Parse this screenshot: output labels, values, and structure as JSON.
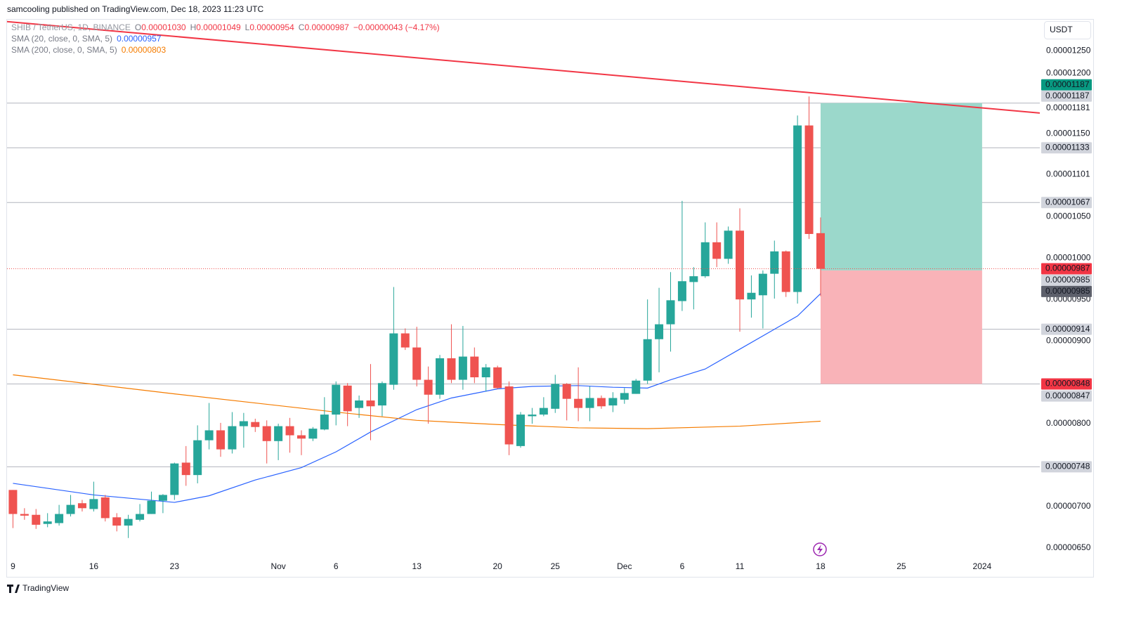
{
  "header": {
    "attribution": "samcooling published on TradingView.com, Dec 18, 2023 11:23 UTC",
    "symbol": "SHIB / TetherUS, 1D, BINANCE",
    "ohlc": [
      {
        "key": "O",
        "value": "0.00001030"
      },
      {
        "key": "H",
        "value": "0.00001049"
      },
      {
        "key": "L",
        "value": "0.00000954"
      },
      {
        "key": "C",
        "value": "0.00000987"
      }
    ],
    "change": "−0.00000043 (−4.17%)",
    "currency": "USDT"
  },
  "footer": {
    "brand": "TradingView"
  },
  "chart_data": {
    "type": "candlestick",
    "up_color": "#26a69a",
    "down_color": "#ef5350",
    "x": [
      "2023-10-09",
      "2023-10-10",
      "2023-10-11",
      "2023-10-12",
      "2023-10-13",
      "2023-10-14",
      "2023-10-15",
      "2023-10-16",
      "2023-10-17",
      "2023-10-18",
      "2023-10-19",
      "2023-10-20",
      "2023-10-21",
      "2023-10-22",
      "2023-10-23",
      "2023-10-24",
      "2023-10-25",
      "2023-10-26",
      "2023-10-27",
      "2023-10-28",
      "2023-10-29",
      "2023-10-30",
      "2023-10-31",
      "2023-11-01",
      "2023-11-02",
      "2023-11-03",
      "2023-11-04",
      "2023-11-05",
      "2023-11-06",
      "2023-11-07",
      "2023-11-08",
      "2023-11-09",
      "2023-11-10",
      "2023-11-11",
      "2023-11-12",
      "2023-11-13",
      "2023-11-14",
      "2023-11-15",
      "2023-11-16",
      "2023-11-17",
      "2023-11-18",
      "2023-11-19",
      "2023-11-20",
      "2023-11-21",
      "2023-11-22",
      "2023-11-23",
      "2023-11-24",
      "2023-11-25",
      "2023-11-26",
      "2023-11-27",
      "2023-11-28",
      "2023-11-29",
      "2023-11-30",
      "2023-12-01",
      "2023-12-02",
      "2023-12-03",
      "2023-12-04",
      "2023-12-05",
      "2023-12-06",
      "2023-12-07",
      "2023-12-08",
      "2023-12-09",
      "2023-12-10",
      "2023-12-11",
      "2023-12-12",
      "2023-12-13",
      "2023-12-14",
      "2023-12-15",
      "2023-12-16",
      "2023-12-17",
      "2023-12-18"
    ],
    "open": [
      7.2e-06,
      6.91e-06,
      6.9e-06,
      6.79e-06,
      6.8e-06,
      6.91e-06,
      7.04e-06,
      6.97e-06,
      7.11e-06,
      6.87e-06,
      6.77e-06,
      6.84e-06,
      6.91e-06,
      7.07e-06,
      7.14e-06,
      7.53e-06,
      7.38e-06,
      7.8e-06,
      7.92e-06,
      7.69e-06,
      7.97e-06,
      8.02e-06,
      7.97e-06,
      7.79e-06,
      7.97e-06,
      7.86e-06,
      7.82e-06,
      7.93e-06,
      8.11e-06,
      8.46e-06,
      8.19e-06,
      8.28e-06,
      8.22e-06,
      8.47e-06,
      9.09e-06,
      8.92e-06,
      8.53e-06,
      8.35e-06,
      8.79e-06,
      8.53e-06,
      8.81e-06,
      8.56e-06,
      8.68e-06,
      8.45e-06,
      7.73e-06,
      8.09e-06,
      8.11e-06,
      8.18e-06,
      8.48e-06,
      8.3e-06,
      8.19e-06,
      8.31e-06,
      8.22e-06,
      8.29e-06,
      8.36e-06,
      8.52e-06,
      9.02e-06,
      9.2e-06,
      9.48e-06,
      9.71e-06,
      9.78e-06,
      1.019e-05,
      9.99e-06,
      1.033e-05,
      9.5e-06,
      9.55e-06,
      9.81e-06,
      1.008e-05,
      9.59e-06,
      1.16e-05,
      1.03e-05
    ],
    "high": [
      7.2e-06,
      6.98e-06,
      6.97e-06,
      6.92e-06,
      7.02e-06,
      7.14e-06,
      7.08e-06,
      7.3e-06,
      7.14e-06,
      6.92e-06,
      6.9e-06,
      7.03e-06,
      7.18e-06,
      7.15e-06,
      7.53e-06,
      7.73e-06,
      7.98e-06,
      8.25e-06,
      8.01e-06,
      8.14e-06,
      8.13e-06,
      8.06e-06,
      8.04e-06,
      8e-06,
      8.07e-06,
      7.92e-06,
      7.96e-06,
      8.32e-06,
      8.51e-06,
      8.49e-06,
      8.34e-06,
      8.72e-06,
      8.51e-06,
      9.65e-06,
      9.15e-06,
      9.17e-06,
      8.69e-06,
      8.83e-06,
      9.2e-06,
      9.18e-06,
      8.92e-06,
      8.72e-06,
      8.7e-06,
      8.51e-06,
      8.14e-06,
      8.19e-06,
      8.32e-06,
      8.59e-06,
      8.49e-06,
      8.68e-06,
      8.45e-06,
      8.34e-06,
      8.38e-06,
      8.43e-06,
      8.54e-06,
      9.5e-06,
      9.64e-06,
      9.83e-06,
      1.069e-05,
      9.89e-06,
      1.043e-05,
      1.043e-05,
      1.038e-05,
      1.06e-05,
      9.79e-06,
      9.85e-06,
      1.021e-05,
      1.009e-05,
      1.172e-05,
      1.195e-05,
      1.049e-05
    ],
    "low": [
      6.74e-06,
      6.84e-06,
      6.73e-06,
      6.75e-06,
      6.77e-06,
      6.88e-06,
      6.94e-06,
      6.94e-06,
      6.82e-06,
      6.7e-06,
      6.62e-06,
      6.82e-06,
      6.91e-06,
      6.92e-06,
      7.08e-06,
      7.25e-06,
      7.28e-06,
      7.69e-06,
      7.6e-06,
      7.64e-06,
      7.71e-06,
      7.9e-06,
      7.52e-06,
      7.56e-06,
      7.65e-06,
      7.62e-06,
      7.79e-06,
      7.92e-06,
      7.98e-06,
      7.97e-06,
      8.07e-06,
      7.8e-06,
      8.09e-06,
      8.41e-06,
      8.89e-06,
      8.45e-06,
      8e-06,
      8.3e-06,
      8.49e-06,
      8.41e-06,
      8.49e-06,
      8.39e-06,
      8.42e-06,
      7.62e-06,
      7.71e-06,
      8e-06,
      8.09e-06,
      8.13e-06,
      8.04e-06,
      8.03e-06,
      8.03e-06,
      8.18e-06,
      8.14e-06,
      8.24e-06,
      8.36e-06,
      8.48e-06,
      8.62e-06,
      8.87e-06,
      9.36e-06,
      9.38e-06,
      9.76e-06,
      9.89e-06,
      9.93e-06,
      9.11e-06,
      9.28e-06,
      9.15e-06,
      9.51e-06,
      9.53e-06,
      9.45e-06,
      1.023e-05,
      9.54e-06
    ],
    "close": [
      6.91e-06,
      6.89e-06,
      6.78e-06,
      6.82e-06,
      6.91e-06,
      7.02e-06,
      6.98e-06,
      7.09e-06,
      6.86e-06,
      6.77e-06,
      6.85e-06,
      6.91e-06,
      7.07e-06,
      7.14e-06,
      7.52e-06,
      7.38e-06,
      7.8e-06,
      7.92e-06,
      7.69e-06,
      7.97e-06,
      8.03e-06,
      7.96e-06,
      7.79e-06,
      7.97e-06,
      7.86e-06,
      7.82e-06,
      7.94e-06,
      8.11e-06,
      8.47e-06,
      8.15e-06,
      8.28e-06,
      8.21e-06,
      8.49e-06,
      9.09e-06,
      8.92e-06,
      8.53e-06,
      8.35e-06,
      8.79e-06,
      8.53e-06,
      8.81e-06,
      8.56e-06,
      8.68e-06,
      8.43e-06,
      7.75e-06,
      8.11e-06,
      8.11e-06,
      8.19e-06,
      8.48e-06,
      8.3e-06,
      8.19e-06,
      8.31e-06,
      8.21e-06,
      8.31e-06,
      8.37e-06,
      8.52e-06,
      9.02e-06,
      9.2e-06,
      9.49e-06,
      9.72e-06,
      9.78e-06,
      1.019e-05,
      9.99e-06,
      1.033e-05,
      9.5e-06,
      9.58e-06,
      9.81e-06,
      1.008e-05,
      9.59e-06,
      1.16e-05,
      1.029e-05,
      9.87e-06
    ],
    "indicators": [
      {
        "name": "SMA (20, close, 0, SMA, 5)",
        "color": "#2962ff",
        "value_label": "0.00000957",
        "x": [
          "2023-10-09",
          "2023-10-16",
          "2023-10-23",
          "2023-10-26",
          "2023-10-30",
          "2023-11-03",
          "2023-11-06",
          "2023-11-09",
          "2023-11-13",
          "2023-11-16",
          "2023-11-20",
          "2023-11-23",
          "2023-11-27",
          "2023-11-30",
          "2023-12-03",
          "2023-12-05",
          "2023-12-08",
          "2023-12-11",
          "2023-12-14",
          "2023-12-16",
          "2023-12-18"
        ],
        "values": [
          7.28e-06,
          7.14e-06,
          7.05e-06,
          7.13e-06,
          7.32e-06,
          7.47e-06,
          7.66e-06,
          7.9e-06,
          8.17e-06,
          8.31e-06,
          8.42e-06,
          8.45e-06,
          8.46e-06,
          8.44e-06,
          8.43e-06,
          8.53e-06,
          8.66e-06,
          8.9e-06,
          9.14e-06,
          9.3e-06,
          9.57e-06
        ]
      },
      {
        "name": "SMA (200, close, 0, SMA, 5)",
        "color": "#f57c00",
        "value_label": "0.00000803",
        "x": [
          "2023-10-09",
          "2023-10-23",
          "2023-11-06",
          "2023-11-13",
          "2023-11-20",
          "2023-11-27",
          "2023-12-03",
          "2023-12-11",
          "2023-12-18"
        ],
        "values": [
          8.59e-06,
          8.36e-06,
          8.14e-06,
          8.04e-06,
          7.99e-06,
          7.95e-06,
          7.94e-06,
          7.97e-06,
          8.03e-06
        ]
      }
    ],
    "trendline": {
      "color": "#f23645",
      "x": [
        "2023-10-08",
        "2024-01-06"
      ],
      "values": [
        1.286e-05,
        1.175e-05
      ]
    },
    "levels": [
      1.187e-05,
      1.133e-05,
      1.067e-05,
      9.14e-06,
      8.48e-06,
      7.48e-06
    ],
    "position": {
      "start": "2023-12-18",
      "end": "2024-01-01",
      "entry": 9.85e-06,
      "target": 1.187e-05,
      "stop": 8.48e-06,
      "profit_color": "#9bd8cb",
      "loss_color": "#f9b3b8"
    },
    "price_labels": [
      {
        "value": 1.187e-05,
        "label": "0.00001187",
        "color": "#089981",
        "text_color": "#ffffff"
      },
      {
        "value": 1.187e-05,
        "label": "0.00001187",
        "color": "#d1d4dc",
        "text_color": "#131722"
      },
      {
        "value": 1.133e-05,
        "label": "0.00001133",
        "color": "#d1d4dc",
        "text_color": "#131722"
      },
      {
        "value": 1.067e-05,
        "label": "0.00001067",
        "color": "#d1d4dc",
        "text_color": "#131722"
      },
      {
        "value": 9.87e-06,
        "label": "0.00000987",
        "color": "#f23645",
        "text_color": "#ffffff"
      },
      {
        "value": 9.85e-06,
        "label": "0.00000985",
        "color": "#d1d4dc",
        "text_color": "#131722"
      },
      {
        "value": 9.85e-06,
        "label": "0.00000985",
        "color": "#5d606b",
        "text_color": "#ffffff"
      },
      {
        "value": 9.14e-06,
        "label": "0.00000914",
        "color": "#d1d4dc",
        "text_color": "#131722"
      },
      {
        "value": 8.48e-06,
        "label": "0.00000848",
        "color": "#f23645",
        "text_color": "#ffffff"
      },
      {
        "value": 8.47e-06,
        "label": "0.00000847",
        "color": "#d1d4dc",
        "text_color": "#131722"
      },
      {
        "value": 7.48e-06,
        "label": "0.00000748",
        "color": "#d1d4dc",
        "text_color": "#131722"
      }
    ],
    "xlim": [
      "2023-10-08",
      "2024-01-06"
    ],
    "xticks": [
      {
        "value": "2023-10-09",
        "label": "9"
      },
      {
        "value": "2023-10-16",
        "label": "16"
      },
      {
        "value": "2023-10-23",
        "label": "23"
      },
      {
        "value": "2023-11-01",
        "label": "Nov"
      },
      {
        "value": "2023-11-06",
        "label": "6"
      },
      {
        "value": "2023-11-13",
        "label": "13"
      },
      {
        "value": "2023-11-20",
        "label": "20"
      },
      {
        "value": "2023-11-25",
        "label": "25"
      },
      {
        "value": "2023-12-01",
        "label": "Dec"
      },
      {
        "value": "2023-12-06",
        "label": "6"
      },
      {
        "value": "2023-12-11",
        "label": "11"
      },
      {
        "value": "2023-12-18",
        "label": "18"
      },
      {
        "value": "2023-12-25",
        "label": "25"
      },
      {
        "value": "2024-01-01",
        "label": "2024"
      }
    ],
    "ylim": [
      6.16e-06,
      1.286e-05
    ],
    "yticks": [
      {
        "value": 1.25e-05,
        "label": "0.00001250"
      },
      {
        "value": 1.2e-05,
        "label": "0.00001200"
      },
      {
        "value": 1.181e-05,
        "label": "0.00001181"
      },
      {
        "value": 1.15e-05,
        "label": "0.00001150"
      },
      {
        "value": 1.101e-05,
        "label": "0.00001101"
      },
      {
        "value": 1.05e-05,
        "label": "0.00001050"
      },
      {
        "value": 1e-05,
        "label": "0.00001000"
      },
      {
        "value": 9.5e-06,
        "label": "0.00000950"
      },
      {
        "value": 9e-06,
        "label": "0.00000900"
      },
      {
        "value": 8e-06,
        "label": "0.00000800"
      },
      {
        "value": 7e-06,
        "label": "0.00000700"
      },
      {
        "value": 6.5e-06,
        "label": "0.00000650"
      }
    ]
  }
}
